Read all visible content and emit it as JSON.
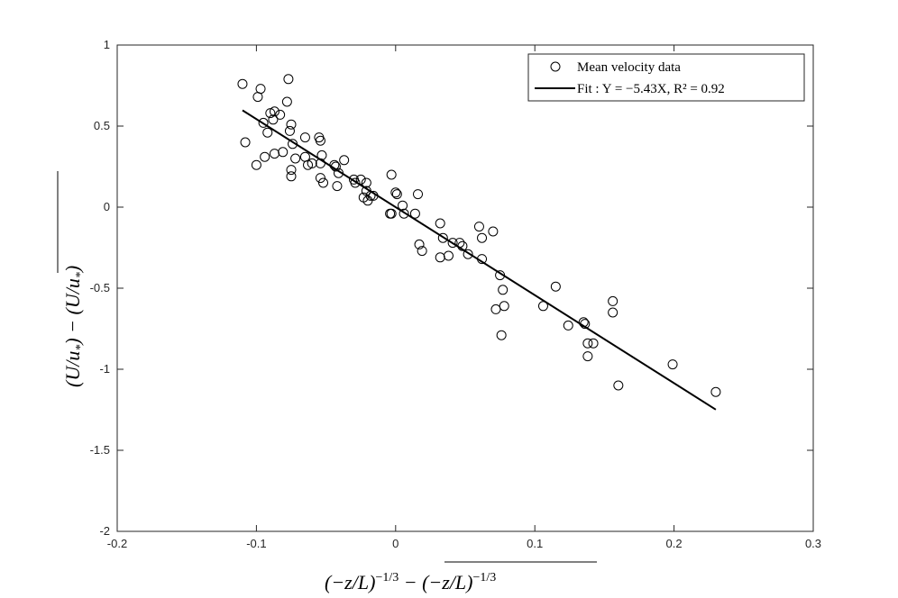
{
  "chart_data": {
    "type": "scatter",
    "xlabel": "(−z/L)^{−1/3} − overline{(−z/L)^{−1/3}}",
    "ylabel": "(U/u_*) − overline{(U/u_*)}",
    "xlim": [
      -0.2,
      0.3
    ],
    "ylim": [
      -2,
      1
    ],
    "xticks": [
      -0.2,
      -0.1,
      0,
      0.1,
      0.2,
      0.3
    ],
    "xtick_labels": [
      "-0.2",
      "-0.1",
      "0",
      "0.1",
      "0.2",
      "0.3"
    ],
    "yticks": [
      -2,
      -1.5,
      -1,
      -0.5,
      0,
      0.5,
      1
    ],
    "ytick_labels": [
      "-2",
      "-1.5",
      "-1",
      "-0.5",
      "0",
      "0.5",
      "1"
    ],
    "grid": false,
    "legend_position": "top-right",
    "legend": {
      "data_label": "Mean velocity data",
      "fit_label": "Fit : Y = −5.43X,  R² = 0.92"
    },
    "series": [
      {
        "name": "Mean velocity data",
        "kind": "scatter",
        "marker": "open-circle",
        "points": [
          [
            -0.11,
            0.76
          ],
          [
            -0.108,
            0.4
          ],
          [
            -0.1,
            0.26
          ],
          [
            -0.099,
            0.68
          ],
          [
            -0.097,
            0.73
          ],
          [
            -0.095,
            0.52
          ],
          [
            -0.094,
            0.31
          ],
          [
            -0.092,
            0.46
          ],
          [
            -0.09,
            0.58
          ],
          [
            -0.088,
            0.54
          ],
          [
            -0.087,
            0.59
          ],
          [
            -0.087,
            0.33
          ],
          [
            -0.083,
            0.57
          ],
          [
            -0.081,
            0.34
          ],
          [
            -0.078,
            0.65
          ],
          [
            -0.077,
            0.79
          ],
          [
            -0.076,
            0.47
          ],
          [
            -0.075,
            0.51
          ],
          [
            -0.075,
            0.19
          ],
          [
            -0.075,
            0.23
          ],
          [
            -0.074,
            0.39
          ],
          [
            -0.072,
            0.3
          ],
          [
            -0.065,
            0.43
          ],
          [
            -0.065,
            0.31
          ],
          [
            -0.063,
            0.26
          ],
          [
            -0.06,
            0.27
          ],
          [
            -0.055,
            0.43
          ],
          [
            -0.054,
            0.41
          ],
          [
            -0.054,
            0.27
          ],
          [
            -0.054,
            0.18
          ],
          [
            -0.053,
            0.32
          ],
          [
            -0.052,
            0.15
          ],
          [
            -0.044,
            0.26
          ],
          [
            -0.043,
            0.25
          ],
          [
            -0.042,
            0.13
          ],
          [
            -0.041,
            0.21
          ],
          [
            -0.037,
            0.29
          ],
          [
            -0.03,
            0.17
          ],
          [
            -0.029,
            0.15
          ],
          [
            -0.025,
            0.17
          ],
          [
            -0.023,
            0.06
          ],
          [
            -0.021,
            0.1
          ],
          [
            -0.021,
            0.15
          ],
          [
            -0.02,
            0.04
          ],
          [
            -0.018,
            0.07
          ],
          [
            -0.016,
            0.07
          ],
          [
            -0.004,
            -0.04
          ],
          [
            -0.003,
            0.2
          ],
          [
            -0.003,
            -0.04
          ],
          [
            0.0,
            0.09
          ],
          [
            0.001,
            0.08
          ],
          [
            0.005,
            0.01
          ],
          [
            0.006,
            -0.04
          ],
          [
            0.014,
            -0.04
          ],
          [
            0.016,
            0.08
          ],
          [
            0.017,
            -0.23
          ],
          [
            0.019,
            -0.27
          ],
          [
            0.032,
            -0.1
          ],
          [
            0.032,
            -0.31
          ],
          [
            0.034,
            -0.19
          ],
          [
            0.038,
            -0.3
          ],
          [
            0.041,
            -0.22
          ],
          [
            0.046,
            -0.22
          ],
          [
            0.048,
            -0.24
          ],
          [
            0.052,
            -0.29
          ],
          [
            0.06,
            -0.12
          ],
          [
            0.062,
            -0.19
          ],
          [
            0.062,
            -0.32
          ],
          [
            0.07,
            -0.15
          ],
          [
            0.072,
            -0.63
          ],
          [
            0.075,
            -0.42
          ],
          [
            0.076,
            -0.79
          ],
          [
            0.077,
            -0.51
          ],
          [
            0.078,
            -0.61
          ],
          [
            0.106,
            -0.61
          ],
          [
            0.115,
            -0.49
          ],
          [
            0.124,
            -0.73
          ],
          [
            0.135,
            -0.71
          ],
          [
            0.136,
            -0.72
          ],
          [
            0.138,
            -0.84
          ],
          [
            0.138,
            -0.92
          ],
          [
            0.142,
            -0.84
          ],
          [
            0.156,
            -0.58
          ],
          [
            0.156,
            -0.65
          ],
          [
            0.16,
            -1.1
          ],
          [
            0.199,
            -0.97
          ],
          [
            0.23,
            -1.14
          ]
        ]
      },
      {
        "name": "Fit",
        "kind": "line",
        "slope": -5.43,
        "x_range": [
          -0.11,
          0.23
        ]
      }
    ]
  }
}
